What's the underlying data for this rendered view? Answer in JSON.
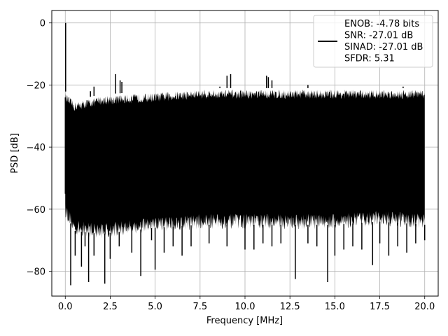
{
  "chart_data": {
    "type": "line",
    "title": "",
    "xlabel": "Frequency [MHz]",
    "ylabel": "PSD [dB]",
    "xlim": [
      -0.75,
      20.75
    ],
    "ylim": [
      -88,
      4
    ],
    "x_ticks": [
      0.0,
      2.5,
      5.0,
      7.5,
      10.0,
      12.5,
      15.0,
      17.5,
      20.0
    ],
    "x_tick_labels": [
      "0.0",
      "2.5",
      "5.0",
      "7.5",
      "10.0",
      "12.5",
      "15.0",
      "17.5",
      "20.0"
    ],
    "y_ticks": [
      0,
      -20,
      -40,
      -60,
      -80
    ],
    "y_tick_labels": [
      "0",
      "−20",
      "−40",
      "−60",
      "−80"
    ],
    "grid": true,
    "legend_position": "top-right",
    "series": [
      {
        "name": "ENOB: -4.78 bits\nSNR: -27.01 dB\nSINAD: -27.01 dB\nSFDR: 5.31",
        "color": "#000000",
        "upper_envelope": [
          [
            0,
            -24
          ],
          [
            0.5,
            -27
          ],
          [
            2,
            -25
          ],
          [
            5,
            -24
          ],
          [
            7.5,
            -23
          ],
          [
            10,
            -23
          ],
          [
            12.5,
            -23
          ],
          [
            15,
            -23
          ],
          [
            17.5,
            -23
          ],
          [
            20,
            -23
          ]
        ],
        "lower_envelope": [
          [
            0,
            -60
          ],
          [
            0.5,
            -66
          ],
          [
            2,
            -67
          ],
          [
            5,
            -65
          ],
          [
            7.5,
            -64
          ],
          [
            10,
            -64
          ],
          [
            12.5,
            -64
          ],
          [
            15,
            -64
          ],
          [
            17.5,
            -63
          ],
          [
            20,
            -64
          ]
        ],
        "peaks": [
          [
            0.02,
            0
          ],
          [
            1.4,
            -22
          ],
          [
            1.6,
            -20.5
          ],
          [
            2.8,
            -16.5
          ],
          [
            3.05,
            -18.5
          ],
          [
            3.15,
            -19
          ],
          [
            8.6,
            -20.5
          ],
          [
            9.0,
            -17
          ],
          [
            9.2,
            -16.5
          ],
          [
            11.2,
            -17
          ],
          [
            11.3,
            -17.5
          ],
          [
            11.5,
            -18.5
          ],
          [
            13.5,
            -20
          ],
          [
            18.8,
            -20.5
          ]
        ],
        "dips": [
          [
            0.3,
            -84.5
          ],
          [
            0.55,
            -75
          ],
          [
            0.9,
            -78.5
          ],
          [
            1.1,
            -72
          ],
          [
            1.3,
            -83.5
          ],
          [
            1.6,
            -75
          ],
          [
            2.2,
            -84
          ],
          [
            2.5,
            -76
          ],
          [
            3.0,
            -72
          ],
          [
            3.7,
            -74
          ],
          [
            4.2,
            -81.5
          ],
          [
            4.8,
            -70
          ],
          [
            5.0,
            -79.5
          ],
          [
            5.5,
            -74
          ],
          [
            6.0,
            -72
          ],
          [
            6.5,
            -75
          ],
          [
            7.0,
            -72
          ],
          [
            8.0,
            -71
          ],
          [
            9.0,
            -72
          ],
          [
            10.0,
            -73
          ],
          [
            10.5,
            -73
          ],
          [
            11.0,
            -71
          ],
          [
            11.5,
            -72
          ],
          [
            12.0,
            -71
          ],
          [
            12.8,
            -82.5
          ],
          [
            13.5,
            -71
          ],
          [
            14.0,
            -72
          ],
          [
            14.6,
            -83.5
          ],
          [
            15.0,
            -75
          ],
          [
            15.5,
            -73
          ],
          [
            16.0,
            -72
          ],
          [
            16.5,
            -73
          ],
          [
            17.1,
            -78
          ],
          [
            17.5,
            -71
          ],
          [
            18.0,
            -75
          ],
          [
            18.5,
            -72
          ],
          [
            19.0,
            -74
          ],
          [
            19.5,
            -71
          ],
          [
            20.0,
            -70
          ]
        ]
      }
    ]
  }
}
